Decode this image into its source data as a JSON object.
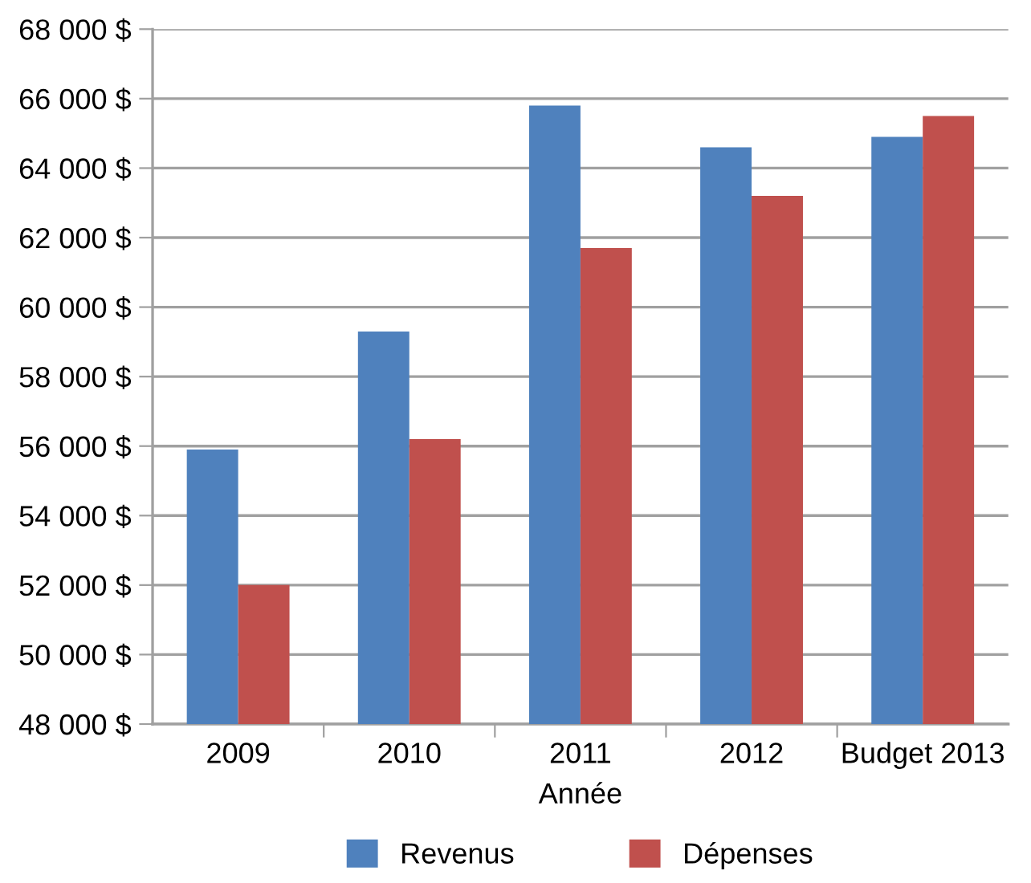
{
  "chart_data": {
    "type": "bar",
    "xlabel": "Année",
    "categories": [
      "2009",
      "2010",
      "2011",
      "2012",
      "Budget 2013"
    ],
    "series": [
      {
        "name": "Revenus",
        "color": "#4f81bd",
        "values": [
          55900,
          59300,
          65800,
          64600,
          64900
        ]
      },
      {
        "name": "Dépenses",
        "color": "#c0504d",
        "values": [
          52000,
          56200,
          61700,
          63200,
          65500
        ]
      }
    ],
    "ylim": [
      48000,
      68000
    ],
    "yticks": [
      {
        "value": 48000,
        "label": "48 000 $"
      },
      {
        "value": 50000,
        "label": "50 000 $"
      },
      {
        "value": 52000,
        "label": "52 000 $"
      },
      {
        "value": 54000,
        "label": "54 000 $"
      },
      {
        "value": 56000,
        "label": "56 000 $"
      },
      {
        "value": 58000,
        "label": "58 000 $"
      },
      {
        "value": 60000,
        "label": "60 000 $"
      },
      {
        "value": 62000,
        "label": "62 000 $"
      },
      {
        "value": 64000,
        "label": "64 000 $"
      },
      {
        "value": 66000,
        "label": "66 000 $"
      },
      {
        "value": 68000,
        "label": "68 000 $"
      }
    ],
    "grid": "y",
    "legend": "bottom"
  }
}
